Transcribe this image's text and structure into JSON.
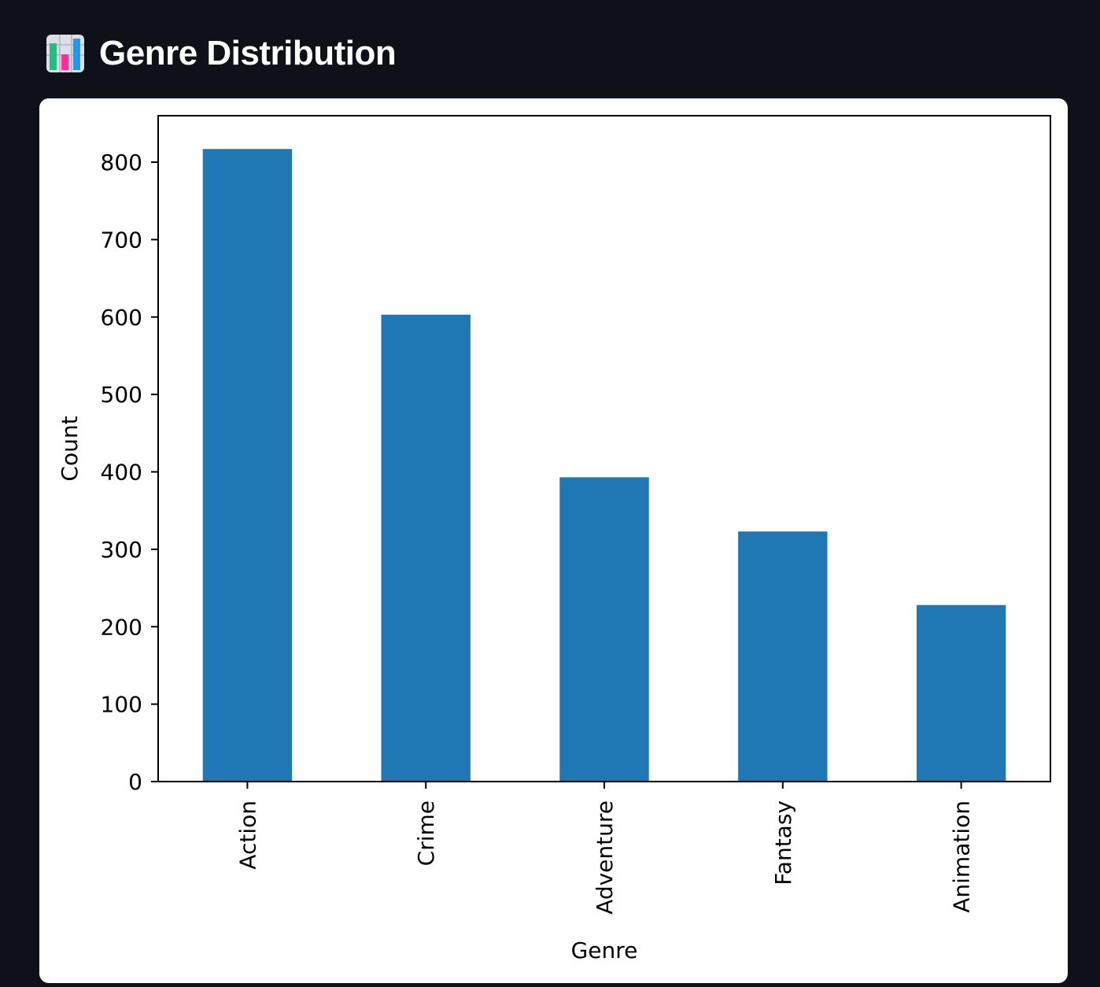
{
  "header": {
    "title": "Genre Distribution",
    "icon": "bar-chart-icon"
  },
  "chart_data": {
    "type": "bar",
    "categories": [
      "Action",
      "Crime",
      "Adventure",
      "Fantasy",
      "Animation"
    ],
    "values": [
      817,
      603,
      393,
      323,
      228
    ],
    "xlabel": "Genre",
    "ylabel": "Count",
    "ylim": [
      0,
      860
    ],
    "yticks": [
      0,
      100,
      200,
      300,
      400,
      500,
      600,
      700,
      800
    ],
    "bar_color": "#1f77b4",
    "grid": false
  }
}
